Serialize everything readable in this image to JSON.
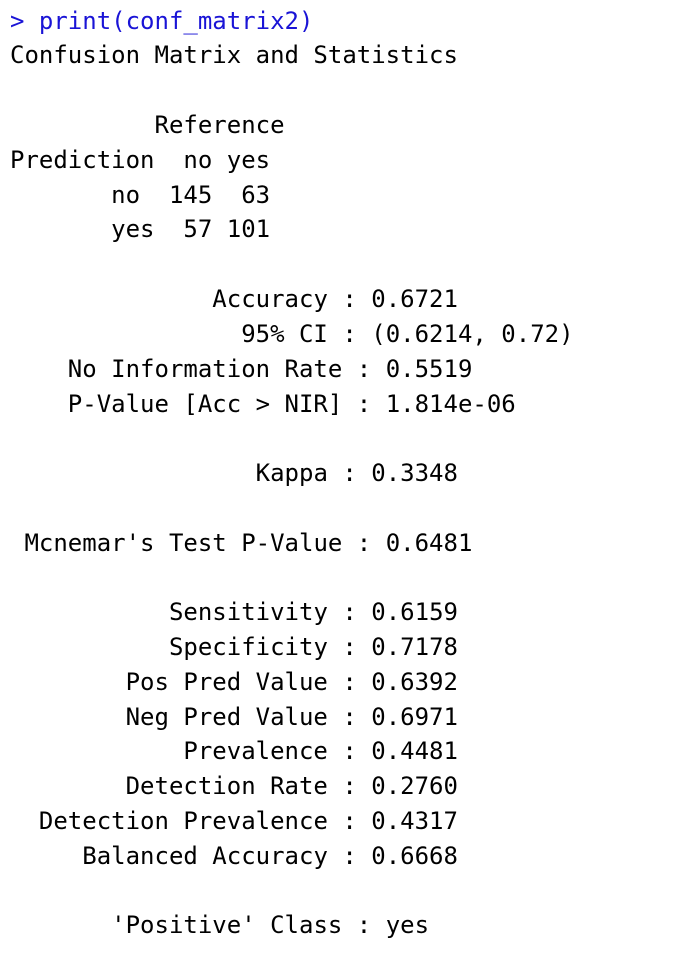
{
  "console": {
    "prompt": "> ",
    "command": "print(conf_matrix2)",
    "command_color": "#1a14d6",
    "header": "Confusion Matrix and Statistics",
    "matrix": {
      "reference_label": "Reference",
      "prediction_label": "Prediction",
      "columns": [
        "no",
        "yes"
      ],
      "rows": [
        {
          "label": "no",
          "values": [
            "145",
            "63"
          ]
        },
        {
          "label": "yes",
          "values": [
            "57",
            "101"
          ]
        }
      ]
    },
    "stats": [
      {
        "label": "Accuracy",
        "value": "0.6721"
      },
      {
        "label": "95% CI",
        "value": "(0.6214, 0.72)"
      },
      {
        "label": "No Information Rate",
        "value": "0.5519"
      },
      {
        "label": "P-Value [Acc > NIR]",
        "value": "1.814e-06"
      },
      {
        "label": "Kappa",
        "value": "0.3348"
      },
      {
        "label": "Mcnemar's Test P-Value",
        "value": "0.6481"
      },
      {
        "label": "Sensitivity",
        "value": "0.6159"
      },
      {
        "label": "Specificity",
        "value": "0.7178"
      },
      {
        "label": "Pos Pred Value",
        "value": "0.6392"
      },
      {
        "label": "Neg Pred Value",
        "value": "0.6971"
      },
      {
        "label": "Prevalence",
        "value": "0.4481"
      },
      {
        "label": "Detection Rate",
        "value": "0.2760"
      },
      {
        "label": "Detection Prevalence",
        "value": "0.4317"
      },
      {
        "label": "Balanced Accuracy",
        "value": "0.6668"
      },
      {
        "label": "'Positive' Class",
        "value": "yes"
      }
    ]
  }
}
